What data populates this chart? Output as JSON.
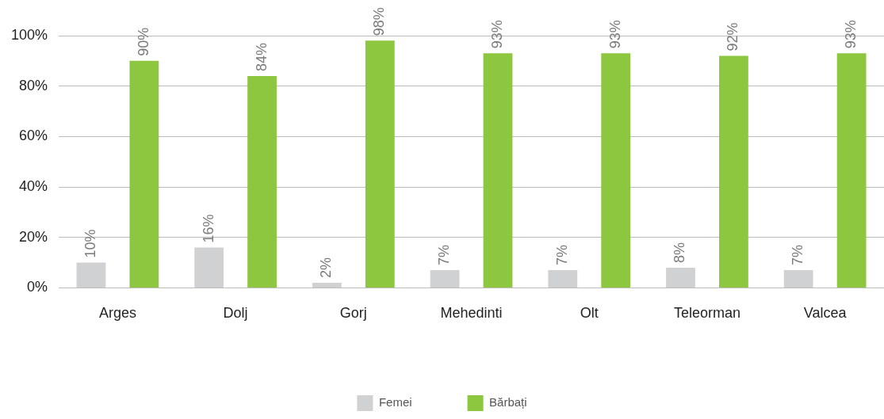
{
  "chart_data": {
    "type": "bar",
    "categories": [
      "Arges",
      "Dolj",
      "Gorj",
      "Mehedinti",
      "Olt",
      "Teleorman",
      "Valcea"
    ],
    "series": [
      {
        "name": "Femei",
        "color": "#d0d1d3",
        "values": [
          10,
          16,
          2,
          7,
          7,
          8,
          7
        ],
        "value_labels": [
          "10%",
          "16%",
          "2%",
          "7%",
          "7%",
          "8%",
          "7%"
        ]
      },
      {
        "name": "Bărbați",
        "color": "#8dc63f",
        "values": [
          90,
          84,
          98,
          93,
          93,
          92,
          93
        ],
        "value_labels": [
          "90%",
          "84%",
          "98%",
          "93%",
          "93%",
          "92%",
          "93%"
        ]
      }
    ],
    "ylim": [
      0,
      100
    ],
    "yticks": [
      {
        "value": 0,
        "label": "0%"
      },
      {
        "value": 20,
        "label": "20%"
      },
      {
        "value": 40,
        "label": "40%"
      },
      {
        "value": 60,
        "label": "60%"
      },
      {
        "value": 80,
        "label": "80%"
      },
      {
        "value": 100,
        "label": "100%"
      }
    ],
    "grid": "y",
    "legend": "bottom"
  }
}
